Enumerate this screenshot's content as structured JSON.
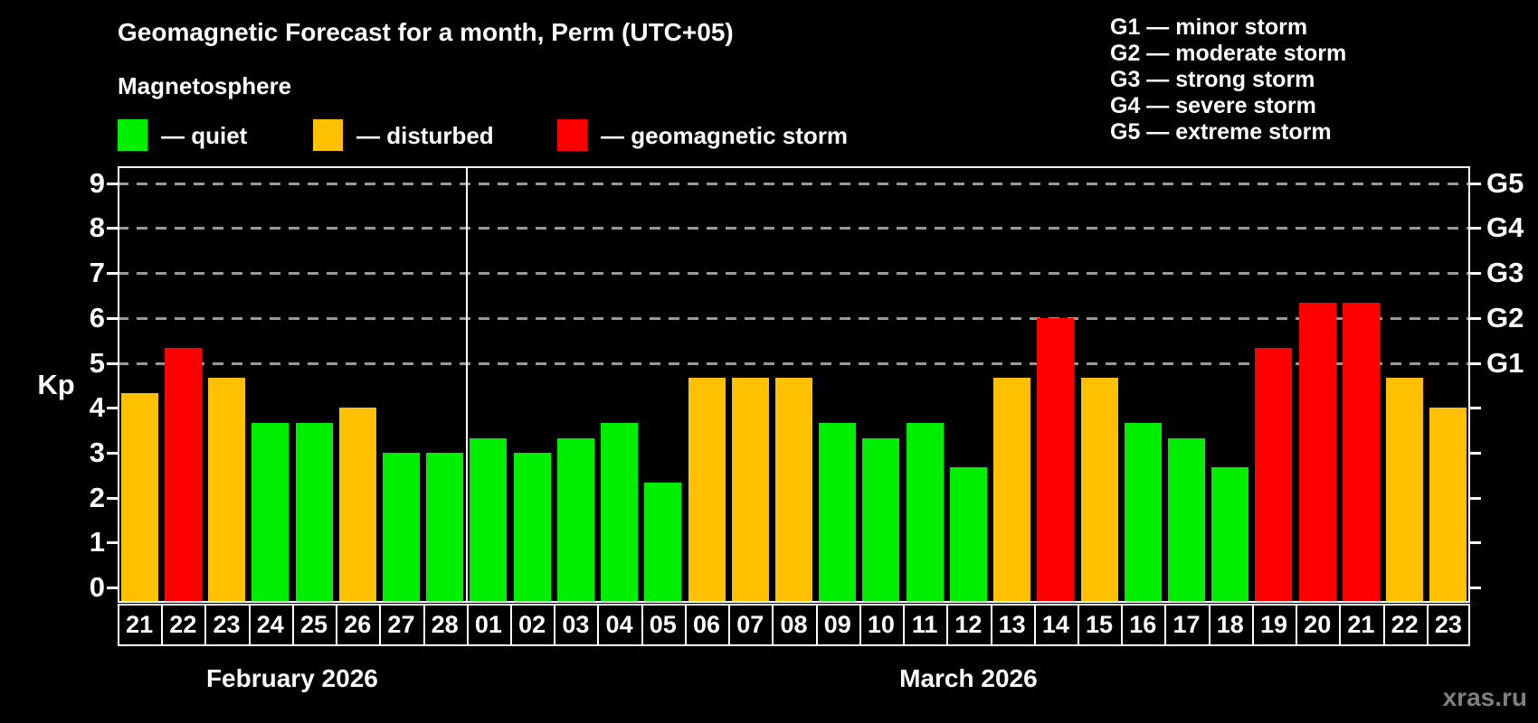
{
  "header": {
    "title": "Geomagnetic Forecast for a month, Perm (UTC+05)",
    "legend_heading": "Magnetosphere",
    "legend_items": [
      {
        "label": "— quiet",
        "status": "quiet"
      },
      {
        "label": "— disturbed",
        "status": "disturbed"
      },
      {
        "label": "— geomagnetic storm",
        "status": "storm"
      }
    ],
    "g_scale_legend": [
      "G1 — minor storm",
      "G2 — moderate storm",
      "G3 — strong storm",
      "G4 — severe storm",
      "G5 — extreme storm"
    ]
  },
  "watermark": "xras.ru",
  "colors": {
    "quiet": "#00EE00",
    "disturbed": "#FFC000",
    "storm": "#FF0000",
    "background": "#000000",
    "grid": "#999999",
    "axis": "#FFFFFF",
    "text": "#FFFFFF",
    "watermark_text": "#808080"
  },
  "chart_data": {
    "type": "bar",
    "title": "Geomagnetic Forecast for a month, Perm (UTC+05)",
    "ylabel": "Kp",
    "ylim": [
      0,
      9
    ],
    "y_ticks": [
      0,
      1,
      2,
      3,
      4,
      5,
      6,
      7,
      8,
      9
    ],
    "gridlines_at_kp": [
      5,
      6,
      7,
      8,
      9
    ],
    "grid": "dashed horizontal lines at Kp 5-9 only",
    "legend_position": "top-left",
    "right_axis_labels": [
      {
        "text": "G1",
        "kp": 5
      },
      {
        "text": "G2",
        "kp": 6
      },
      {
        "text": "G3",
        "kp": 7
      },
      {
        "text": "G4",
        "kp": 8
      },
      {
        "text": "G5",
        "kp": 9
      }
    ],
    "groups": [
      {
        "month": "February 2026",
        "categories": [
          "21",
          "22",
          "23",
          "24",
          "25",
          "26",
          "27",
          "28"
        ],
        "values": [
          4.33,
          5.33,
          4.67,
          3.67,
          3.67,
          4.0,
          3.0,
          3.0
        ],
        "statuses": [
          "disturbed",
          "storm",
          "disturbed",
          "quiet",
          "quiet",
          "disturbed",
          "quiet",
          "quiet"
        ]
      },
      {
        "month": "March 2026",
        "categories": [
          "01",
          "02",
          "03",
          "04",
          "05",
          "06",
          "07",
          "08",
          "09",
          "10",
          "11",
          "12",
          "13",
          "14",
          "15",
          "16",
          "17",
          "18",
          "19",
          "20",
          "21",
          "22",
          "23"
        ],
        "values": [
          3.33,
          3.0,
          3.33,
          3.67,
          2.33,
          4.67,
          4.67,
          4.67,
          3.67,
          3.33,
          3.67,
          2.67,
          4.67,
          6.0,
          4.67,
          3.67,
          3.33,
          2.67,
          5.33,
          6.33,
          6.33,
          4.67,
          4.0
        ],
        "statuses": [
          "quiet",
          "quiet",
          "quiet",
          "quiet",
          "quiet",
          "disturbed",
          "disturbed",
          "disturbed",
          "quiet",
          "quiet",
          "quiet",
          "quiet",
          "disturbed",
          "storm",
          "disturbed",
          "quiet",
          "quiet",
          "quiet",
          "storm",
          "storm",
          "storm",
          "disturbed",
          "disturbed"
        ]
      }
    ]
  }
}
